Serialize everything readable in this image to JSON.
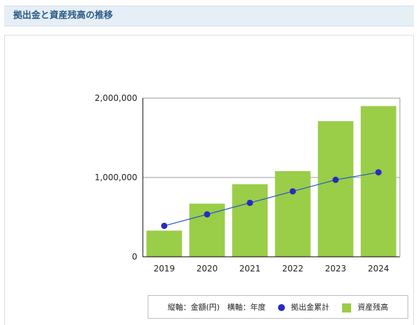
{
  "section": {
    "title": "拠出金と資産残高の推移"
  },
  "legend": {
    "axis_desc": "縦軸：金額(円)　横軸：年度",
    "line_name": "拠出金累計",
    "bar_name": "資産残高"
  },
  "colors": {
    "bar": "#9acd48",
    "line": "#2255cc",
    "marker": "#2a2ac0",
    "header_bg": "#e6eef6",
    "header_text": "#2a5a86"
  },
  "chart_data": {
    "type": "bar",
    "categories": [
      "2019",
      "2020",
      "2021",
      "2022",
      "2023",
      "2024"
    ],
    "series": [
      {
        "name": "資産残高",
        "type": "bar",
        "values": [
          330000,
          670000,
          915000,
          1080000,
          1710000,
          1900000
        ]
      },
      {
        "name": "拠出金累計",
        "type": "line",
        "values": [
          390000,
          535000,
          680000,
          825000,
          970000,
          1065000
        ]
      }
    ],
    "y_ticks": [
      0,
      1000000,
      2000000
    ],
    "y_tick_labels": [
      "0",
      "1,000,000",
      "2,000,000"
    ],
    "ylim": [
      0,
      2000000
    ],
    "grid": true,
    "legend_position": "bottom-right"
  }
}
